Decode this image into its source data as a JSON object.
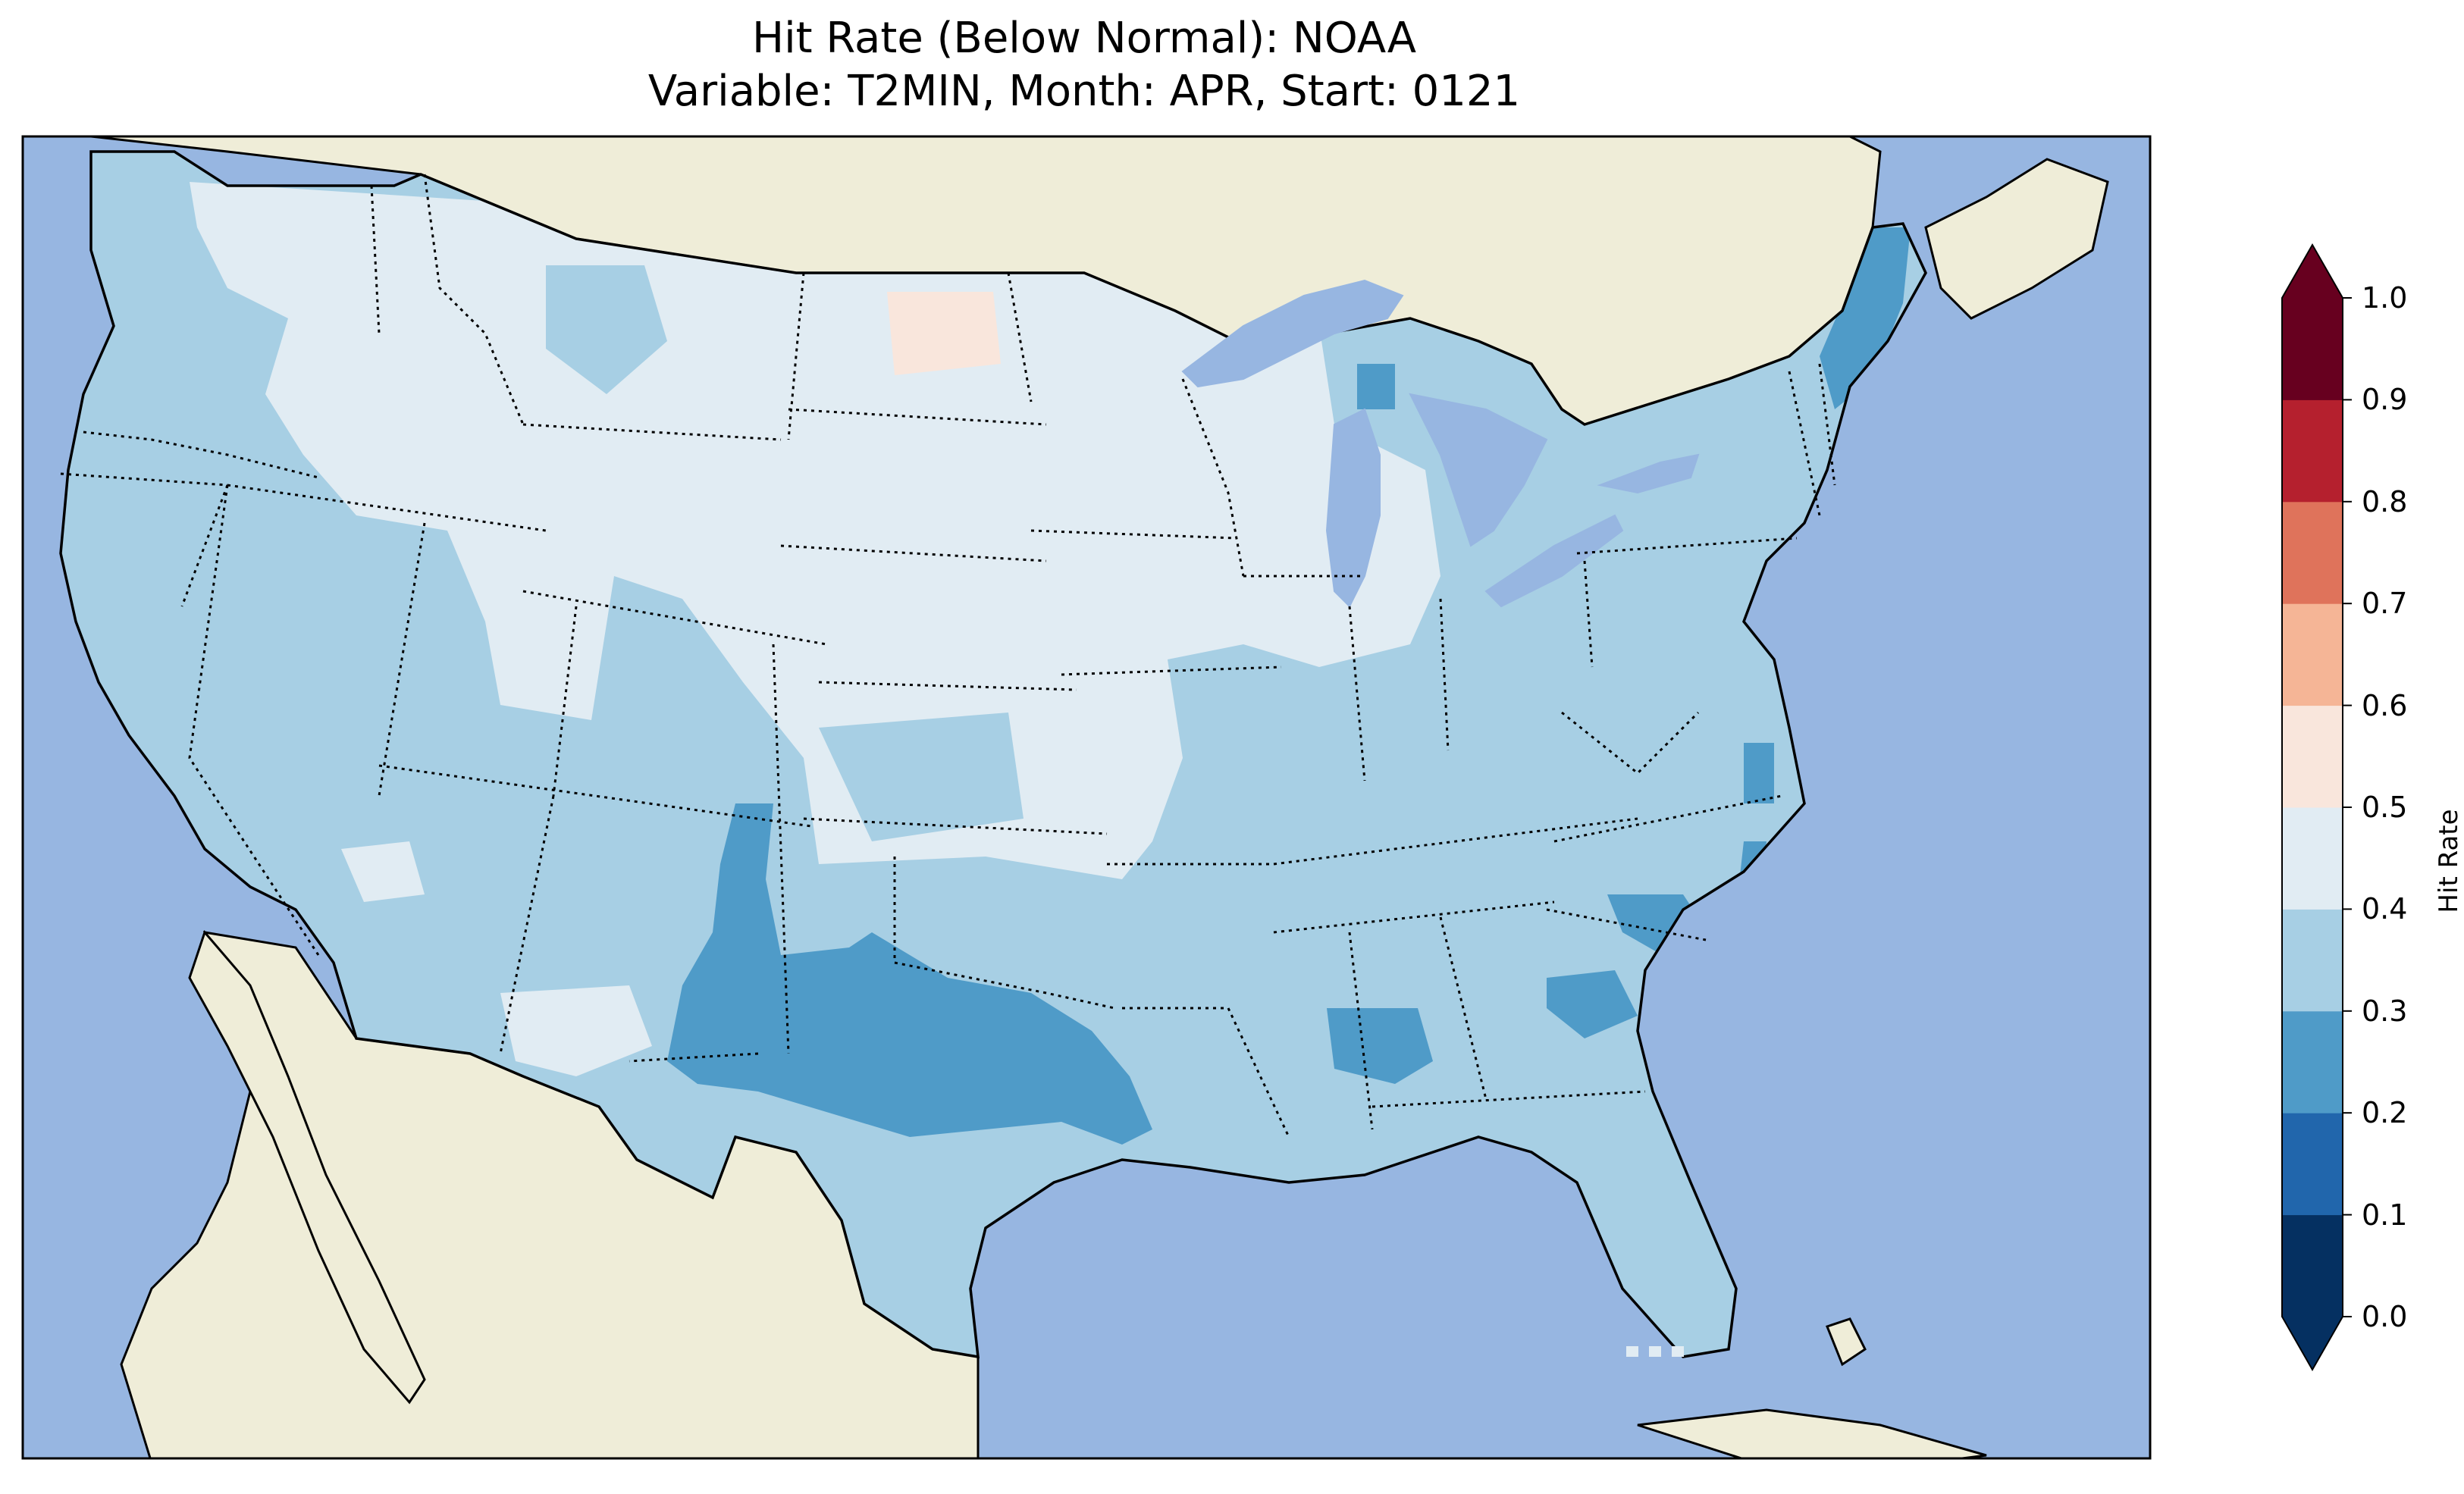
{
  "title_line1": "Hit Rate (Below Normal): NOAA",
  "title_line2": "Variable: T2MIN, Month: APR, Start: 0121",
  "colors": {
    "ocean": "#97b6e1",
    "land": "#efedd8",
    "lakes": "#97b6e1"
  },
  "colorbar": {
    "label": "Hit Rate",
    "ticks": [
      "0.0",
      "0.1",
      "0.2",
      "0.3",
      "0.4",
      "0.5",
      "0.6",
      "0.7",
      "0.8",
      "0.9",
      "1.0"
    ],
    "bins": [
      {
        "range": "0.0-0.1",
        "color": "#053061"
      },
      {
        "range": "0.1-0.2",
        "color": "#2166ac"
      },
      {
        "range": "0.2-0.3",
        "color": "#4f9bc8"
      },
      {
        "range": "0.3-0.4",
        "color": "#a7cfe4"
      },
      {
        "range": "0.4-0.5",
        "color": "#e1ecf3"
      },
      {
        "range": "0.5-0.6",
        "color": "#f9e6dc"
      },
      {
        "range": "0.6-0.7",
        "color": "#f5b596"
      },
      {
        "range": "0.7-0.8",
        "color": "#df735b"
      },
      {
        "range": "0.8-0.9",
        "color": "#b5202e"
      },
      {
        "range": "0.9-1.0",
        "color": "#67001f"
      }
    ],
    "extend": "both"
  }
}
